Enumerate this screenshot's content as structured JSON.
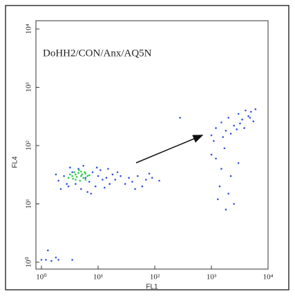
{
  "chart_data": {
    "type": "scatter",
    "annotation": "DoHH2/CON/Anx/AQ5N",
    "x_label": "FL1",
    "y_label": "FL4",
    "log_x": true,
    "log_y": true,
    "xlim": [
      1,
      10000
    ],
    "ylim": [
      1,
      10000
    ],
    "xticks": [
      {
        "value": 1,
        "label": "10⁰"
      },
      {
        "value": 10,
        "label": "10¹"
      },
      {
        "value": 100,
        "label": "10²"
      },
      {
        "value": 1000,
        "label": "10³"
      },
      {
        "value": 10000,
        "label": "10⁴"
      }
    ],
    "yticks": [
      {
        "value": 1,
        "label": "10⁰"
      },
      {
        "value": 10,
        "label": "10¹"
      },
      {
        "value": 100,
        "label": "10²"
      },
      {
        "value": 1000,
        "label": "10³"
      },
      {
        "value": 10000,
        "label": "10⁴"
      }
    ],
    "series": [
      {
        "color": "#3050e0",
        "x": [
          2,
          2.5,
          3,
          3.5,
          4,
          4.5,
          5,
          6,
          7,
          8,
          9,
          10,
          12,
          1.8,
          2.2,
          3.2,
          6.5,
          11,
          14,
          16,
          18,
          20,
          25,
          30,
          35,
          40,
          50,
          60,
          70,
          90,
          120,
          15,
          2.8,
          5.5,
          7.5,
          9.5,
          13,
          22,
          45,
          80,
          1000,
          1200,
          1500,
          1800,
          2000,
          2500,
          3000,
          3500,
          4000,
          4500,
          5000,
          5500,
          6000,
          2200,
          2800,
          3200,
          1100,
          1600,
          3800,
          4800,
          1200,
          1500,
          1400,
          2000,
          2500,
          1800,
          1300,
          2200,
          3000,
          1700,
          280,
          1000,
          1.2,
          1.5,
          2,
          1.3,
          1.8,
          3.5,
          1
        ],
        "y": [
          25,
          30,
          20,
          35,
          22,
          40,
          18,
          28,
          24,
          35,
          20,
          30,
          26,
          32,
          18,
          42,
          16,
          38,
          28,
          22,
          32,
          26,
          30,
          22,
          28,
          24,
          30,
          20,
          26,
          28,
          25,
          40,
          22,
          45,
          15,
          42,
          19,
          35,
          18,
          33,
          150,
          200,
          250,
          180,
          300,
          220,
          350,
          280,
          400,
          320,
          380,
          260,
          420,
          160,
          190,
          240,
          120,
          140,
          200,
          300,
          60,
          40,
          20,
          15,
          10,
          8,
          12,
          30,
          50,
          90,
          300,
          70,
          1.1,
          1.05,
          1.1,
          1.6,
          1.2,
          1.1,
          1.1
        ]
      },
      {
        "color": "#20c840",
        "x": [
          3,
          3.5,
          4,
          4.5,
          5,
          5.5,
          6,
          4,
          5,
          6.5,
          3.8,
          4.8,
          5.2,
          4.2,
          6,
          3.2,
          7,
          4.6,
          5.8,
          3.6
        ],
        "y": [
          28,
          30,
          32,
          34,
          30,
          28,
          33,
          26,
          36,
          30,
          35,
          25,
          32,
          29,
          26,
          32,
          31,
          38,
          35,
          27
        ]
      }
    ]
  }
}
